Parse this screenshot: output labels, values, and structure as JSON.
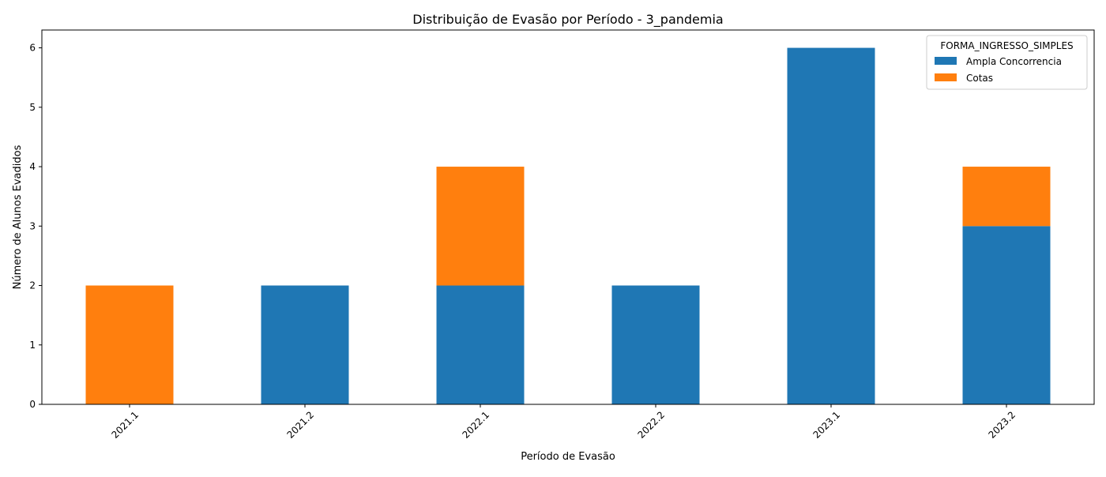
{
  "chart_data": {
    "type": "bar",
    "stacked": true,
    "title": "Distribuição de Evasão por Período - 3_pandemia",
    "xlabel": "Período de Evasão",
    "ylabel": "Número de Alunos Evadidos",
    "categories": [
      "2021.1",
      "2021.2",
      "2022.1",
      "2022.2",
      "2023.1",
      "2023.2"
    ],
    "series": [
      {
        "name": "Ampla Concorrencia",
        "color": "#1f77b4",
        "values": [
          0,
          2,
          2,
          2,
          6,
          3
        ]
      },
      {
        "name": "Cotas",
        "color": "#ff7f0e",
        "values": [
          2,
          0,
          2,
          0,
          0,
          1
        ]
      }
    ],
    "ylim": [
      0,
      6.3
    ],
    "yticks": [
      0,
      1,
      2,
      3,
      4,
      5,
      6
    ],
    "grid": false,
    "legend": {
      "title": "FORMA_INGRESSO_SIMPLES",
      "placement": "top-right"
    },
    "xtick_rotation": 45
  }
}
